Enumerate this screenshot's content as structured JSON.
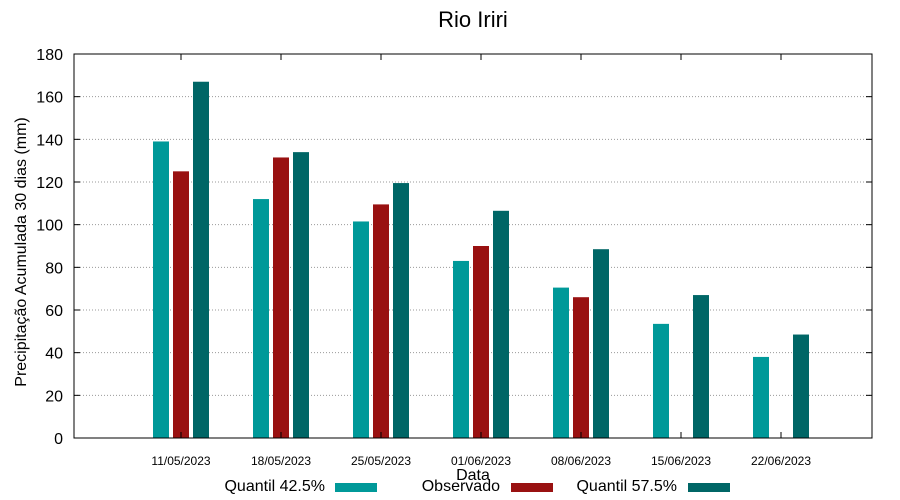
{
  "chart_data": {
    "type": "bar",
    "title": "Rio Iriri",
    "xlabel": "Data",
    "ylabel": "Precipitação Acumulada 30 dias (mm)",
    "ylim": [
      0,
      180
    ],
    "yticks": [
      "0",
      "20",
      "40",
      "60",
      "80",
      "100",
      "120",
      "140",
      "160",
      "180"
    ],
    "grid": true,
    "legend_position": "bottom",
    "categories": [
      "11/05/2023",
      "18/05/2023",
      "25/05/2023",
      "01/06/2023",
      "08/06/2023",
      "15/06/2023",
      "22/06/2023"
    ],
    "series": [
      {
        "name": "Quantil 42.5%",
        "color": "#009999",
        "values": [
          139,
          112,
          101.5,
          83,
          70.5,
          53.5,
          38
        ]
      },
      {
        "name": "Observado",
        "color": "#991111",
        "values": [
          125,
          131.5,
          109.5,
          90,
          66,
          null,
          null
        ]
      },
      {
        "name": "Quantil 57.5%",
        "color": "#006666",
        "values": [
          167,
          134,
          119.5,
          106.5,
          88.5,
          67,
          48.5
        ]
      }
    ]
  }
}
